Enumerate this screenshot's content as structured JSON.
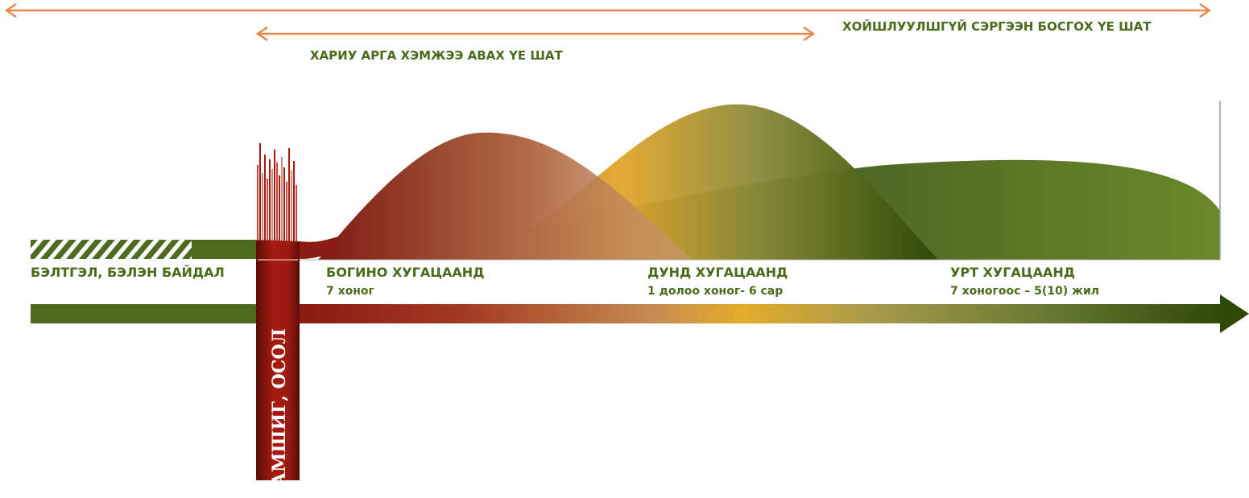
{
  "phases": {
    "recovery": "ХОЙШЛУУЛШГҮЙ СЭРГЭЭН БОСГОХ ҮЕ ШАТ",
    "response": "ХАРИУ АРГА ХЭМЖЭЭ АВАХ ҮЕ ШАТ"
  },
  "stages": {
    "preparedness": {
      "title": "БЭЛТГЭЛ, БЭЛЭН БАЙДАЛ"
    },
    "short_term": {
      "title": "БОГИНО ХУГАЦААНД",
      "duration": "7 хоног"
    },
    "medium_term": {
      "title": "ДУНД ХУГАЦААНД",
      "duration": "1 долоо хоног- 6 сар"
    },
    "long_term": {
      "title": "УРТ ХУГАЦААНД",
      "duration": "7 хоногоос – 5(10) жил"
    }
  },
  "disaster": {
    "label": "ГАМШИГ, ОСОЛ"
  },
  "colors": {
    "accent_orange": "#e8874a",
    "olive": "#4e6a1e",
    "dark_red": "#9c1a10",
    "gold": "#e3ac2a",
    "dark_green": "#2f4a07",
    "text_green": "#4a6a1c"
  }
}
